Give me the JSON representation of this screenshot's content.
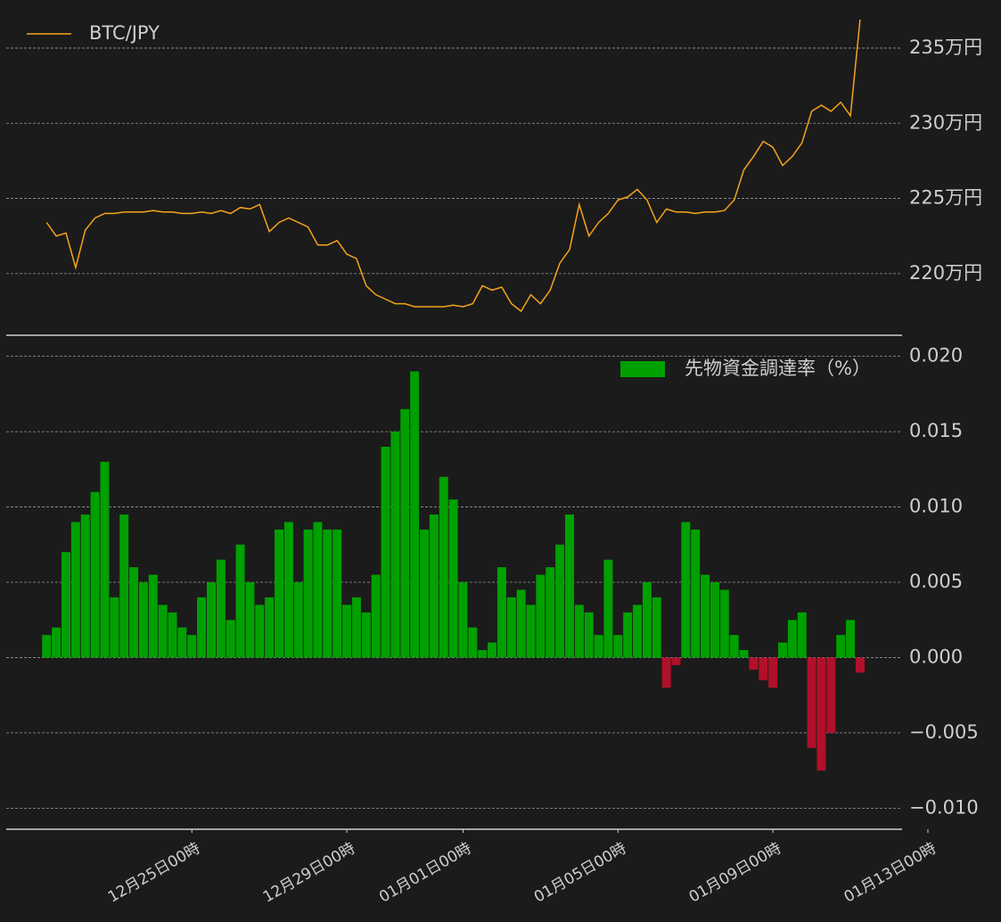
{
  "chart_data": [
    {
      "type": "line",
      "x": [
        "12-21 06",
        "12-21 12",
        "12-21 18",
        "12-22 00",
        "12-22 06",
        "12-22 12",
        "12-22 18",
        "12-23 00",
        "12-23 06",
        "12-23 12",
        "12-23 18",
        "12-24 00",
        "12-24 06",
        "12-24 12",
        "12-24 18",
        "12-25 00",
        "12-25 06",
        "12-25 12",
        "12-25 18",
        "12-26 00",
        "12-26 06",
        "12-26 12",
        "12-26 18",
        "12-27 00",
        "12-27 06",
        "12-27 12",
        "12-27 18",
        "12-28 00",
        "12-28 06",
        "12-28 12",
        "12-28 18",
        "12-29 00",
        "12-29 06",
        "12-29 12",
        "12-29 18",
        "12-30 00",
        "12-30 06",
        "12-30 12",
        "12-30 18",
        "12-31 00",
        "12-31 06",
        "12-31 12",
        "12-31 18",
        "01-01 00",
        "01-01 06",
        "01-01 12",
        "01-01 18",
        "01-02 00",
        "01-02 06",
        "01-02 12",
        "01-02 18",
        "01-03 00",
        "01-03 06",
        "01-03 12",
        "01-03 18",
        "01-04 00",
        "01-04 06",
        "01-04 12",
        "01-04 18",
        "01-05 00",
        "01-05 06",
        "01-05 12",
        "01-05 18",
        "01-06 00",
        "01-06 06",
        "01-06 12",
        "01-06 18",
        "01-07 00",
        "01-07 06",
        "01-07 12",
        "01-07 18",
        "01-08 00",
        "01-08 06",
        "01-08 12",
        "01-08 18",
        "01-09 00",
        "01-09 06",
        "01-09 12",
        "01-09 18",
        "01-10 00",
        "01-10 06",
        "01-10 12",
        "01-10 18",
        "01-11 00",
        "01-11 06"
      ],
      "series": [
        {
          "name": "BTC/JPY",
          "color": "#f5a31a",
          "values": [
            223.4,
            222.5,
            222.7,
            220.4,
            222.9,
            223.7,
            224.0,
            224.0,
            224.1,
            224.1,
            224.1,
            224.2,
            224.1,
            224.1,
            224.0,
            224.0,
            224.1,
            224.0,
            224.2,
            224.0,
            224.4,
            224.3,
            224.6,
            222.8,
            223.4,
            223.7,
            223.4,
            223.1,
            221.9,
            221.9,
            222.2,
            221.3,
            221.0,
            219.2,
            218.6,
            218.3,
            218.0,
            218.0,
            217.8,
            217.8,
            217.8,
            217.8,
            217.9,
            217.8,
            218.0,
            219.2,
            218.9,
            219.1,
            218.0,
            217.5,
            218.6,
            218.0,
            218.9,
            220.7,
            221.6,
            224.6,
            222.5,
            223.4,
            224.0,
            224.9,
            225.1,
            225.6,
            224.9,
            223.4,
            224.3,
            224.1,
            224.1,
            224.0,
            224.1,
            224.1,
            224.2,
            224.9,
            226.9,
            227.8,
            228.8,
            228.4,
            227.2,
            227.8,
            228.7,
            230.8,
            231.2,
            230.8,
            231.4,
            230.5,
            236.9
          ]
        }
      ],
      "xlim": [
        "12-20 05",
        "01-12 08"
      ],
      "ylim": [
        215.9,
        238.2
      ],
      "yticks": [
        {
          "value": 220,
          "label": "220万円"
        },
        {
          "value": 225,
          "label": "225万円"
        },
        {
          "value": 230,
          "label": "230万円"
        },
        {
          "value": 235,
          "label": "235万円"
        }
      ],
      "grid": true,
      "legend": "upper left"
    },
    {
      "type": "bar",
      "x": [
        "12-21 06",
        "12-21 12",
        "12-21 18",
        "12-22 00",
        "12-22 06",
        "12-22 12",
        "12-22 18",
        "12-23 00",
        "12-23 06",
        "12-23 12",
        "12-23 18",
        "12-24 00",
        "12-24 06",
        "12-24 12",
        "12-24 18",
        "12-25 00",
        "12-25 06",
        "12-25 12",
        "12-25 18",
        "12-26 00",
        "12-26 06",
        "12-26 12",
        "12-26 18",
        "12-27 00",
        "12-27 06",
        "12-27 12",
        "12-27 18",
        "12-28 00",
        "12-28 06",
        "12-28 12",
        "12-28 18",
        "12-29 00",
        "12-29 06",
        "12-29 12",
        "12-29 18",
        "12-30 00",
        "12-30 06",
        "12-30 12",
        "12-30 18",
        "12-31 00",
        "12-31 06",
        "12-31 12",
        "12-31 18",
        "01-01 00",
        "01-01 06",
        "01-01 12",
        "01-01 18",
        "01-02 00",
        "01-02 06",
        "01-02 12",
        "01-02 18",
        "01-03 00",
        "01-03 06",
        "01-03 12",
        "01-03 18",
        "01-04 00",
        "01-04 06",
        "01-04 12",
        "01-04 18",
        "01-05 00",
        "01-05 06",
        "01-05 12",
        "01-05 18",
        "01-06 00",
        "01-06 06",
        "01-06 12",
        "01-06 18",
        "01-07 00",
        "01-07 06",
        "01-07 12",
        "01-07 18",
        "01-08 00",
        "01-08 06",
        "01-08 12",
        "01-08 18",
        "01-09 00",
        "01-09 06",
        "01-09 12",
        "01-09 18",
        "01-10 00",
        "01-10 06",
        "01-10 12",
        "01-10 18",
        "01-11 00",
        "01-11 06"
      ],
      "series": [
        {
          "name": "先物資金調達率（%）",
          "color": "#00a000",
          "negative_color": "#b0102a",
          "values": [
            0.0015,
            0.002,
            0.007,
            0.009,
            0.0095,
            0.011,
            0.013,
            0.004,
            0.0095,
            0.006,
            0.005,
            0.0055,
            0.0035,
            0.003,
            0.002,
            0.0015,
            0.004,
            0.005,
            0.0065,
            0.0025,
            0.0075,
            0.005,
            0.0035,
            0.004,
            0.0085,
            0.009,
            0.005,
            0.0085,
            0.009,
            0.0085,
            0.0085,
            0.0035,
            0.004,
            0.003,
            0.0055,
            0.014,
            0.015,
            0.0165,
            0.019,
            0.0085,
            0.0095,
            0.012,
            0.0105,
            0.005,
            0.002,
            0.0005,
            0.001,
            0.006,
            0.004,
            0.0045,
            0.0035,
            0.0055,
            0.006,
            0.0075,
            0.0095,
            0.0035,
            0.003,
            0.0015,
            0.0065,
            0.0015,
            0.003,
            0.0035,
            0.005,
            0.004,
            -0.002,
            -0.0005,
            0.009,
            0.0085,
            0.0055,
            0.005,
            0.0045,
            0.0015,
            0.0005,
            -0.0008,
            -0.0015,
            -0.002,
            0.001,
            0.0025,
            0.003,
            -0.006,
            -0.0075,
            -0.005,
            0.0015,
            0.0025,
            -0.001
          ]
        }
      ],
      "xlim": [
        "12-20 05",
        "01-12 08"
      ],
      "xticks": [
        {
          "value": "12-25 00",
          "label": "12月25日00時"
        },
        {
          "value": "12-29 00",
          "label": "12月29日00時"
        },
        {
          "value": "01-01 00",
          "label": "01月01日00時"
        },
        {
          "value": "01-05 00",
          "label": "01月05日00時"
        },
        {
          "value": "01-09 00",
          "label": "01月09日00時"
        },
        {
          "value": "01-13 00",
          "label": "01月13日00時"
        }
      ],
      "ylim": [
        -0.0114,
        0.0214
      ],
      "yticks": [
        {
          "value": -0.01,
          "label": "−0.010"
        },
        {
          "value": -0.005,
          "label": "−0.005"
        },
        {
          "value": 0,
          "label": "0.000"
        },
        {
          "value": 0.005,
          "label": "0.005"
        },
        {
          "value": 0.01,
          "label": "0.010"
        },
        {
          "value": 0.015,
          "label": "0.015"
        },
        {
          "value": 0.02,
          "label": "0.020"
        }
      ],
      "grid": true,
      "legend": "upper right"
    }
  ]
}
